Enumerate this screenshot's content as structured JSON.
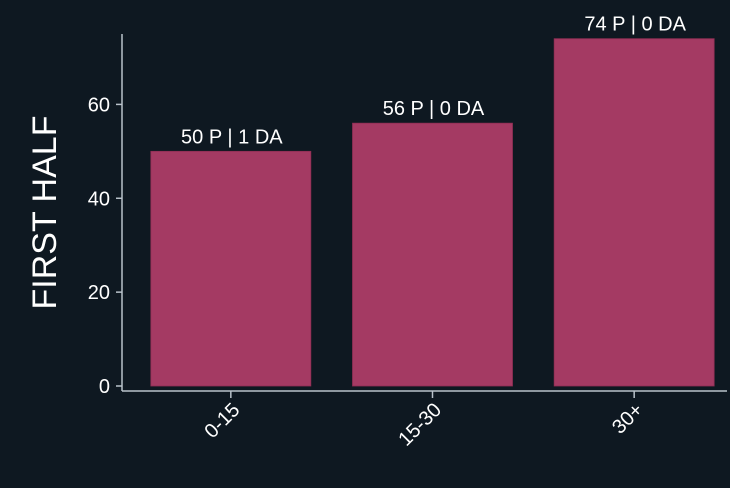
{
  "chart_data": {
    "type": "bar",
    "categories": [
      "0-15",
      "15-30",
      "30+"
    ],
    "values": [
      50,
      56,
      74
    ],
    "data_labels": [
      "50 P | 1 DA",
      "56 P | 0 DA",
      "74 P | 0 DA"
    ],
    "title": "",
    "xlabel": "",
    "ylabel": "FIRST HALF",
    "ylim": [
      0,
      75
    ],
    "y_ticks": [
      0,
      20,
      40,
      60
    ],
    "grid": false,
    "legend": "none"
  },
  "colors": {
    "background": "#0e1821",
    "bar": "#a43a63",
    "axis": "#b9c2cb",
    "text": "#ffffff"
  }
}
